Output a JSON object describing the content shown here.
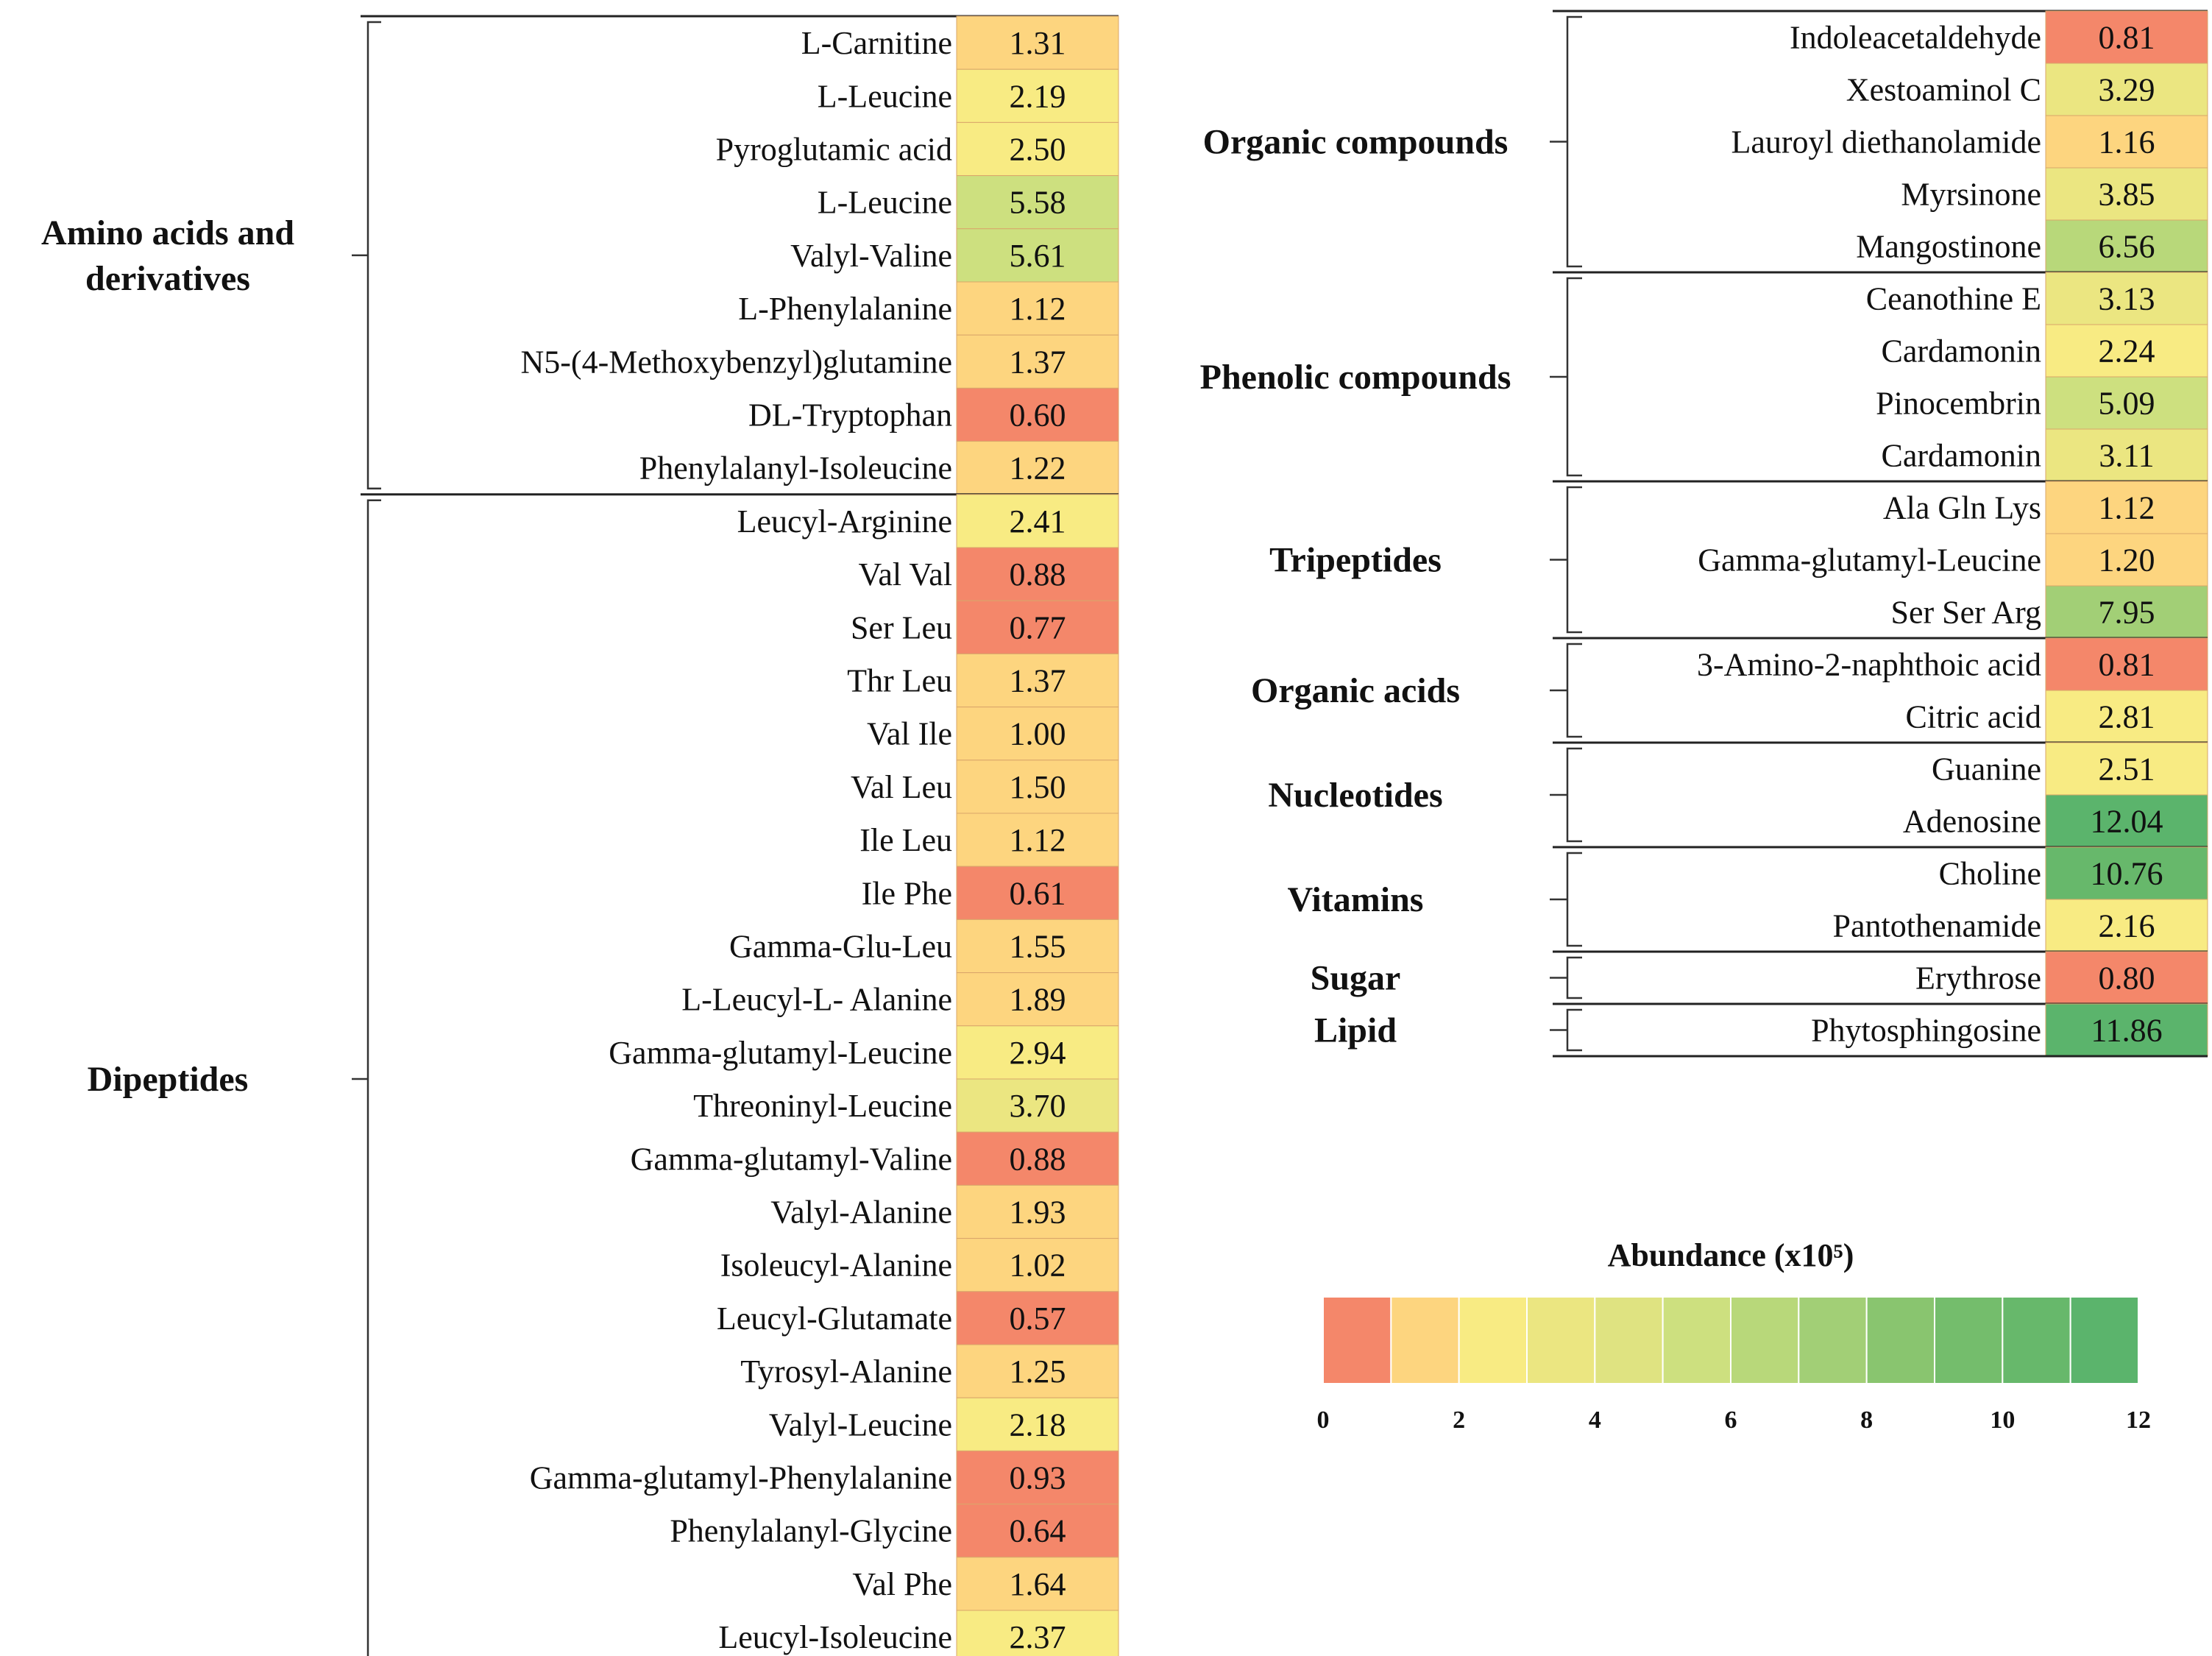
{
  "chart_data": {
    "type": "heatmap",
    "title": "",
    "color_scale": {
      "title": "Abundance (x10⁵)",
      "ticks": [
        "0",
        "2",
        "4",
        "6",
        "8",
        "10",
        "12"
      ],
      "domain": [
        0,
        12
      ],
      "colors": [
        "#f4876a",
        "#fdd57f",
        "#f8eb83",
        "#ebe681",
        "#dfe381",
        "#cde07f",
        "#b8d87a",
        "#a2cf76",
        "#89c56f",
        "#74bd6c",
        "#67b86b",
        "#5bb46c"
      ]
    },
    "panels": [
      {
        "groups": [
          {
            "name": "Amino acids and derivatives",
            "items": [
              {
                "name": "L-Carnitine",
                "value": "1.31"
              },
              {
                "name": "L-Leucine",
                "value": "2.19"
              },
              {
                "name": "Pyroglutamic acid",
                "value": "2.50"
              },
              {
                "name": "L-Leucine",
                "value": "5.58"
              },
              {
                "name": "Valyl-Valine",
                "value": "5.61"
              },
              {
                "name": "L-Phenylalanine",
                "value": "1.12"
              },
              {
                "name": "N5-(4-Methoxybenzyl)glutamine",
                "value": "1.37"
              },
              {
                "name": "DL-Tryptophan",
                "value": "0.60"
              },
              {
                "name": "Phenylalanyl-Isoleucine",
                "value": "1.22"
              }
            ]
          },
          {
            "name": "Dipeptides",
            "items": [
              {
                "name": "Leucyl-Arginine",
                "value": "2.41"
              },
              {
                "name": "Val Val",
                "value": "0.88"
              },
              {
                "name": "Ser Leu",
                "value": "0.77"
              },
              {
                "name": "Thr Leu",
                "value": "1.37"
              },
              {
                "name": "Val Ile",
                "value": "1.00"
              },
              {
                "name": "Val Leu",
                "value": "1.50"
              },
              {
                "name": "Ile Leu",
                "value": "1.12"
              },
              {
                "name": "Ile Phe",
                "value": "0.61"
              },
              {
                "name": "Gamma-Glu-Leu",
                "value": "1.55"
              },
              {
                "name": "L-Leucyl-L- Alanine",
                "value": "1.89"
              },
              {
                "name": "Gamma-glutamyl-Leucine",
                "value": "2.94"
              },
              {
                "name": "Threoninyl-Leucine",
                "value": "3.70"
              },
              {
                "name": "Gamma-glutamyl-Valine",
                "value": "0.88"
              },
              {
                "name": "Valyl-Alanine",
                "value": "1.93"
              },
              {
                "name": "Isoleucyl-Alanine",
                "value": "1.02"
              },
              {
                "name": "Leucyl-Glutamate",
                "value": "0.57"
              },
              {
                "name": "Tyrosyl-Alanine",
                "value": "1.25"
              },
              {
                "name": "Valyl-Leucine",
                "value": "2.18"
              },
              {
                "name": "Gamma-glutamyl-Phenylalanine",
                "value": "0.93"
              },
              {
                "name": "Phenylalanyl-Glycine",
                "value": "0.64"
              },
              {
                "name": "Val Phe",
                "value": "1.64"
              },
              {
                "name": "Leucyl-Isoleucine",
                "value": "2.37"
              }
            ]
          }
        ]
      },
      {
        "groups": [
          {
            "name": "Organic compounds",
            "items": [
              {
                "name": "Indoleacetaldehyde",
                "value": "0.81"
              },
              {
                "name": "Xestoaminol C",
                "value": "3.29"
              },
              {
                "name": "Lauroyl diethanolamide",
                "value": "1.16"
              },
              {
                "name": "Myrsinone",
                "value": "3.85"
              },
              {
                "name": "Mangostinone",
                "value": "6.56"
              }
            ]
          },
          {
            "name": "Phenolic compounds",
            "items": [
              {
                "name": "Ceanothine E",
                "value": "3.13"
              },
              {
                "name": "Cardamonin",
                "value": "2.24"
              },
              {
                "name": "Pinocembrin",
                "value": "5.09"
              },
              {
                "name": "Cardamonin",
                "value": "3.11"
              }
            ]
          },
          {
            "name": "Tripeptides",
            "items": [
              {
                "name": "Ala Gln Lys",
                "value": "1.12"
              },
              {
                "name": "Gamma-glutamyl-Leucine",
                "value": "1.20"
              },
              {
                "name": "Ser Ser Arg",
                "value": "7.95"
              }
            ]
          },
          {
            "name": "Organic acids",
            "items": [
              {
                "name": "3-Amino-2-naphthoic acid",
                "value": "0.81"
              },
              {
                "name": "Citric acid",
                "value": "2.81"
              }
            ]
          },
          {
            "name": "Nucleotides",
            "items": [
              {
                "name": "Guanine",
                "value": "2.51"
              },
              {
                "name": "Adenosine",
                "value": "12.04"
              }
            ]
          },
          {
            "name": "Vitamins",
            "items": [
              {
                "name": "Choline",
                "value": "10.76"
              },
              {
                "name": "Pantothenamide",
                "value": "2.16"
              }
            ]
          },
          {
            "name": "Sugar",
            "items": [
              {
                "name": "Erythrose",
                "value": "0.80"
              }
            ]
          },
          {
            "name": "Lipid",
            "items": [
              {
                "name": "Phytosphingosine",
                "value": "11.86"
              }
            ]
          }
        ]
      }
    ]
  }
}
